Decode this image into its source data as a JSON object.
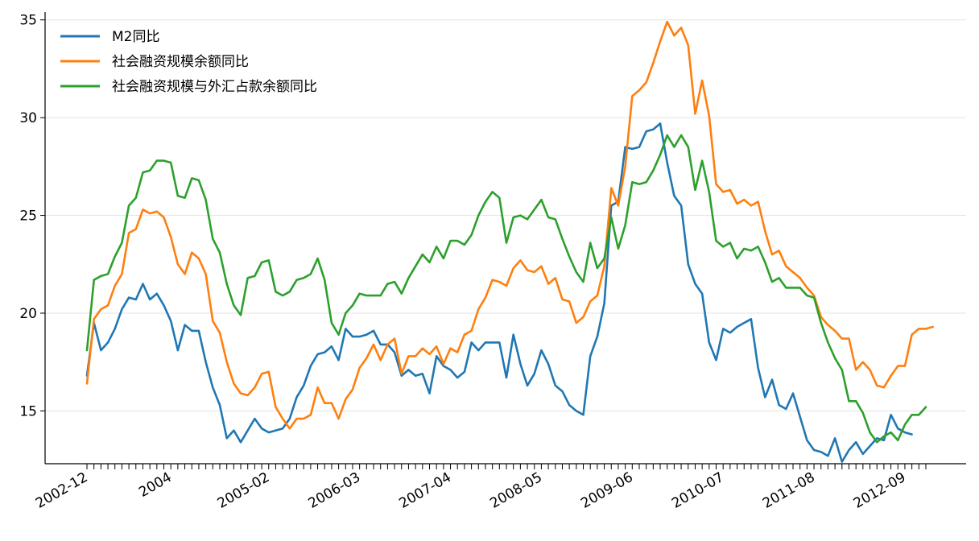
{
  "chart_data": {
    "type": "line",
    "title": "",
    "xlabel": "",
    "ylabel": "",
    "x_start": "2002-12",
    "x_end": "2012-12",
    "x_tick_labels": [
      "2002-12",
      "2004",
      "2005-02",
      "2006-03",
      "2007-04",
      "2008-05",
      "2009-06",
      "2010-07",
      "2011-08",
      "2012-09"
    ],
    "x_tick_dates": [
      "2002-12",
      "2003-12",
      "2005-02",
      "2006-03",
      "2007-04",
      "2008-05",
      "2009-06",
      "2010-07",
      "2011-08",
      "2012-09"
    ],
    "ylim": [
      12.3,
      35.4
    ],
    "y_ticks": [
      15,
      20,
      25,
      30,
      35
    ],
    "grid": "horizontal",
    "legend_position": "top-left",
    "series": [
      {
        "name": "M2同比",
        "color": "#1f77b4",
        "values": [
          16.8,
          19.5,
          18.1,
          18.5,
          19.2,
          20.2,
          20.8,
          20.7,
          21.5,
          20.7,
          21.0,
          20.4,
          19.6,
          18.1,
          19.4,
          19.1,
          19.1,
          17.5,
          16.2,
          15.3,
          13.6,
          14.0,
          13.4,
          14.0,
          14.6,
          14.1,
          13.9,
          14.0,
          14.1,
          14.6,
          15.7,
          16.3,
          17.3,
          17.9,
          18.0,
          18.3,
          17.6,
          19.2,
          18.8,
          18.8,
          18.9,
          19.1,
          18.4,
          18.4,
          18.0,
          16.8,
          17.1,
          16.8,
          16.9,
          15.9,
          17.8,
          17.3,
          17.1,
          16.7,
          17.0,
          18.5,
          18.1,
          18.5,
          18.5,
          18.5,
          16.7,
          18.9,
          17.4,
          16.3,
          16.9,
          18.1,
          17.4,
          16.3,
          16.0,
          15.3,
          15.0,
          14.8,
          17.8,
          18.8,
          20.5,
          25.5,
          25.7,
          28.5,
          28.4,
          28.5,
          29.3,
          29.4,
          29.7,
          27.7,
          26.0,
          25.5,
          22.5,
          21.5,
          21.0,
          18.5,
          17.6,
          19.2,
          19.0,
          19.3,
          19.5,
          19.7,
          17.2,
          15.7,
          16.6,
          15.3,
          15.1,
          15.9,
          14.7,
          13.5,
          13.0,
          12.9,
          12.7,
          13.6,
          12.4,
          13.0,
          13.4,
          12.8,
          13.2,
          13.6,
          13.5,
          14.8,
          14.1,
          13.9,
          13.8
        ]
      },
      {
        "name": "社会融资规模余额同比",
        "color": "#ff7f0e",
        "values": [
          16.4,
          19.7,
          20.2,
          20.4,
          21.4,
          22.0,
          24.1,
          24.3,
          25.3,
          25.1,
          25.2,
          24.9,
          23.9,
          22.5,
          22.0,
          23.1,
          22.8,
          22.0,
          19.6,
          19.0,
          17.5,
          16.4,
          15.9,
          15.8,
          16.2,
          16.9,
          17.0,
          15.2,
          14.6,
          14.1,
          14.6,
          14.6,
          14.8,
          16.2,
          15.4,
          15.4,
          14.6,
          15.6,
          16.1,
          17.2,
          17.7,
          18.4,
          17.6,
          18.4,
          18.7,
          16.9,
          17.8,
          17.8,
          18.2,
          17.9,
          18.3,
          17.4,
          18.2,
          18.0,
          18.9,
          19.1,
          20.2,
          20.8,
          21.7,
          21.6,
          21.4,
          22.3,
          22.7,
          22.2,
          22.1,
          22.4,
          21.5,
          21.8,
          20.7,
          20.6,
          19.5,
          19.8,
          20.6,
          20.9,
          22.4,
          26.4,
          25.5,
          27.5,
          31.1,
          31.4,
          31.8,
          32.8,
          33.9,
          34.9,
          34.2,
          34.6,
          33.7,
          30.2,
          31.9,
          30.1,
          26.6,
          26.2,
          26.3,
          25.6,
          25.8,
          25.5,
          25.7,
          24.2,
          23.0,
          23.2,
          22.4,
          22.1,
          21.8,
          21.3,
          20.9,
          19.8,
          19.4,
          19.1,
          18.7,
          18.7,
          17.1,
          17.5,
          17.1,
          16.3,
          16.2,
          16.8,
          17.3,
          17.3,
          18.9,
          19.2,
          19.2,
          19.3
        ]
      },
      {
        "name": "社会融资规模与外汇占款余额同比",
        "color": "#2ca02c",
        "values": [
          18.1,
          21.7,
          21.9,
          22.0,
          22.9,
          23.6,
          25.5,
          25.9,
          27.2,
          27.3,
          27.8,
          27.8,
          27.7,
          26.0,
          25.9,
          26.9,
          26.8,
          25.8,
          23.8,
          23.1,
          21.5,
          20.4,
          19.9,
          21.8,
          21.9,
          22.6,
          22.7,
          21.1,
          20.9,
          21.1,
          21.7,
          21.8,
          22.0,
          22.8,
          21.7,
          19.5,
          18.9,
          20.0,
          20.4,
          21.0,
          20.9,
          20.9,
          20.9,
          21.5,
          21.6,
          21.0,
          21.8,
          22.4,
          23.0,
          22.6,
          23.4,
          22.8,
          23.7,
          23.7,
          23.5,
          24.0,
          25.0,
          25.7,
          26.2,
          25.9,
          23.6,
          24.9,
          25.0,
          24.8,
          25.3,
          25.8,
          24.9,
          24.8,
          23.8,
          22.9,
          22.1,
          21.6,
          23.6,
          22.3,
          22.8,
          24.9,
          23.3,
          24.5,
          26.7,
          26.6,
          26.7,
          27.3,
          28.1,
          29.1,
          28.5,
          29.1,
          28.5,
          26.3,
          27.8,
          26.2,
          23.7,
          23.4,
          23.6,
          22.8,
          23.3,
          23.2,
          23.4,
          22.6,
          21.6,
          21.8,
          21.3,
          21.3,
          21.3,
          20.9,
          20.8,
          19.5,
          18.5,
          17.7,
          17.1,
          15.5,
          15.5,
          14.9,
          13.9,
          13.4,
          13.7,
          13.9,
          13.5,
          14.3,
          14.8,
          14.8,
          15.2
        ]
      }
    ]
  }
}
